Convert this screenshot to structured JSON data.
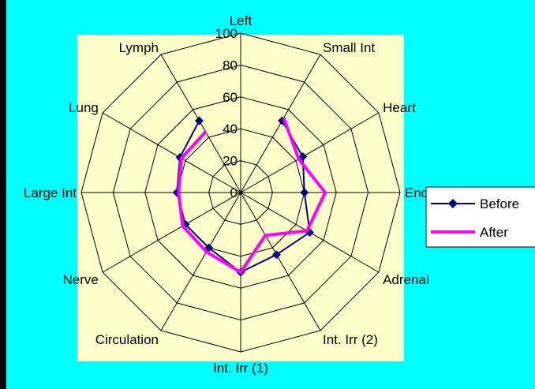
{
  "chart_data": {
    "type": "radar",
    "title": "",
    "categories": [
      "Left",
      "Small Int",
      "Heart",
      "Endocrine",
      "Adrenal",
      "Int. Irr (2)",
      "Int. Irr (1)",
      "Circulation",
      "Nerve",
      "Large Int",
      "Lung",
      "Lymph"
    ],
    "tick_labels": [
      "0",
      "20",
      "40",
      "60",
      "80",
      "100"
    ],
    "rlim": [
      0,
      100
    ],
    "grid": true,
    "legend_position": "right",
    "series": [
      {
        "name": "Before",
        "values": [
          null,
          52,
          45,
          40,
          50,
          45,
          50,
          40,
          40,
          40,
          44,
          52
        ],
        "color": "#000080",
        "marker": "diamond"
      },
      {
        "name": "After",
        "values": [
          null,
          54,
          42,
          53,
          48,
          31,
          50,
          43,
          42,
          39,
          43,
          44
        ],
        "color": "#FF00FF",
        "marker": "none"
      }
    ]
  },
  "colors": {
    "background": "#00FFFF",
    "plot_area": "#FFFFCC",
    "gridline": "#000000"
  }
}
